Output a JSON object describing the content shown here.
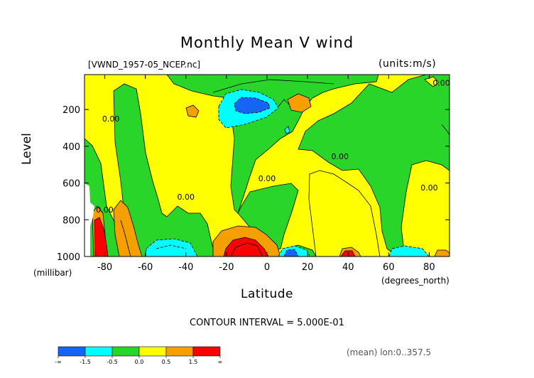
{
  "title": "Monthly Mean V wind",
  "dataset_label": "[VWND_1957-05_NCEP.nc]",
  "units_label": "(units:m/s)",
  "footer": {
    "contour_interval": "CONTOUR INTERVAL = 5.000E-01",
    "mean_info": "(mean) lon:0..357.5"
  },
  "chart_data": {
    "type": "heatmap",
    "title": "Monthly Mean V wind",
    "xlabel": "Latitude",
    "xunit": "(degrees_north)",
    "ylabel": "Level",
    "yunit": "(millibar)",
    "xlim": [
      -90,
      90
    ],
    "ylim": [
      1000,
      10
    ],
    "xticks": [
      -80,
      -60,
      -40,
      -20,
      0,
      20,
      40,
      60,
      80
    ],
    "yticks": [
      200,
      400,
      600,
      800,
      1000
    ],
    "contour_labels": [
      {
        "x": -77,
        "y": 265,
        "text": "0.00"
      },
      {
        "x": -80,
        "y": 760,
        "text": "0.00"
      },
      {
        "x": -40,
        "y": 690,
        "text": "0.00"
      },
      {
        "x": 0,
        "y": 590,
        "text": "0.00"
      },
      {
        "x": 36,
        "y": 470,
        "text": "0.00"
      },
      {
        "x": 80,
        "y": 640,
        "text": "0.00"
      },
      {
        "x": 86,
        "y": 70,
        "text": "0.00"
      }
    ],
    "colorbar": {
      "colors": [
        "#1464f5",
        "#00ffff",
        "#2ad52a",
        "#ffff00",
        "#f5a000",
        "#ff0000"
      ],
      "labels": [
        "-∞",
        "-1.5",
        "-0.5",
        "0.0",
        "0.5",
        "1.5",
        "∞"
      ]
    }
  }
}
